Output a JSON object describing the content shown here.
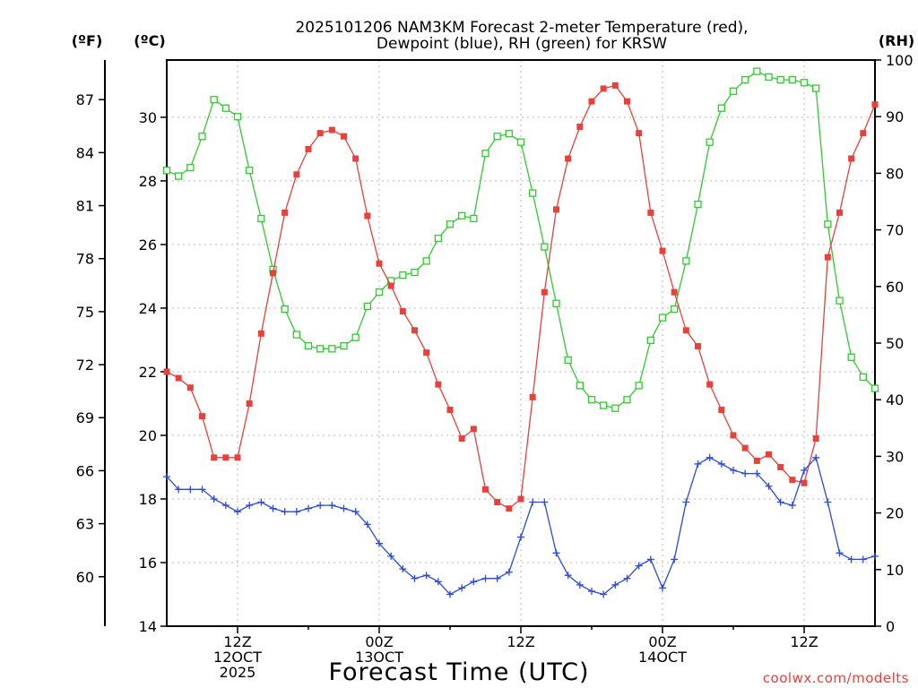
{
  "chart_data": {
    "type": "line",
    "title_line1": "2025101206 NAM3KM Forecast 2-meter Temperature (red),",
    "title_line2": "Dewpoint (blue), RH (green) for KRSW",
    "xlabel": "Forecast Time (UTC)",
    "credit": "coolwx.com/modelts",
    "units": {
      "fahrenheit": "(ºF)",
      "celsius": "(ºC)",
      "rh": "(RH)"
    },
    "x_range_hours": [
      0,
      60
    ],
    "celsius_range": [
      14,
      31.8
    ],
    "rh_range": [
      0,
      100
    ],
    "celsius_ticks": [
      "14",
      "16",
      "18",
      "20",
      "22",
      "24",
      "26",
      "28",
      "30"
    ],
    "fahrenheit_ticks": [
      "60",
      "63",
      "66",
      "69",
      "72",
      "75",
      "78",
      "81",
      "84",
      "87"
    ],
    "rh_ticks": [
      "0",
      "10",
      "20",
      "30",
      "40",
      "50",
      "60",
      "70",
      "80",
      "90",
      "100"
    ],
    "x_ticks": [
      {
        "hour": 6,
        "line1": "12Z",
        "line2": "12OCT",
        "line3": "2025"
      },
      {
        "hour": 18,
        "line1": "00Z",
        "line2": "13OCT",
        "line3": ""
      },
      {
        "hour": 30,
        "line1": "12Z",
        "line2": "",
        "line3": ""
      },
      {
        "hour": 42,
        "line1": "00Z",
        "line2": "14OCT",
        "line3": ""
      },
      {
        "hour": 54,
        "line1": "12Z",
        "line2": "",
        "line3": ""
      }
    ],
    "x": [
      0,
      1,
      2,
      3,
      4,
      5,
      6,
      7,
      8,
      9,
      10,
      11,
      12,
      13,
      14,
      15,
      16,
      17,
      18,
      19,
      20,
      21,
      22,
      23,
      24,
      25,
      26,
      27,
      28,
      29,
      30,
      31,
      32,
      33,
      34,
      35,
      36,
      37,
      38,
      39,
      40,
      41,
      42,
      43,
      44,
      45,
      46,
      47,
      48,
      49,
      50,
      51,
      52,
      53,
      54,
      55,
      56,
      57,
      58,
      59,
      60
    ],
    "series": [
      {
        "name": "Temperature (°C)",
        "color": "#e8403a",
        "marker": "filled-square",
        "values": [
          22.0,
          21.8,
          21.5,
          20.6,
          19.3,
          19.3,
          19.3,
          21.0,
          23.2,
          25.1,
          27.0,
          28.2,
          29.0,
          29.5,
          29.6,
          29.4,
          28.7,
          26.9,
          25.4,
          24.7,
          23.9,
          23.3,
          22.6,
          21.6,
          20.8,
          19.9,
          20.2,
          18.3,
          17.9,
          17.7,
          18.0,
          21.2,
          24.5,
          27.1,
          28.7,
          29.7,
          30.5,
          30.9,
          31.0,
          30.5,
          29.5,
          27.0,
          25.8,
          24.5,
          23.3,
          22.8,
          21.6,
          20.8,
          20.0,
          19.6,
          19.2,
          19.4,
          19.0,
          18.6,
          18.5,
          19.9,
          25.6,
          27.0,
          28.7,
          29.5,
          30.4
        ]
      },
      {
        "name": "Dewpoint (°C)",
        "color": "#2a4bdc",
        "marker": "plus",
        "values": [
          18.7,
          18.3,
          18.3,
          18.3,
          18.0,
          17.8,
          17.6,
          17.8,
          17.9,
          17.7,
          17.6,
          17.6,
          17.7,
          17.8,
          17.8,
          17.7,
          17.6,
          17.2,
          16.6,
          16.2,
          15.8,
          15.5,
          15.6,
          15.4,
          15.0,
          15.2,
          15.4,
          15.5,
          15.5,
          15.7,
          16.8,
          17.9,
          17.9,
          16.3,
          15.6,
          15.3,
          15.1,
          15.0,
          15.3,
          15.5,
          15.9,
          16.1,
          15.2,
          16.1,
          17.9,
          19.1,
          19.3,
          19.1,
          18.9,
          18.8,
          18.8,
          18.4,
          17.9,
          17.8,
          18.9,
          19.3,
          17.9,
          16.3,
          16.1,
          16.1,
          16.2
        ]
      },
      {
        "name": "RH (%)",
        "color": "#2ecc2e",
        "marker": "open-square",
        "values": [
          80.5,
          79.5,
          81.0,
          86.5,
          93.0,
          91.5,
          90.0,
          80.5,
          72.0,
          63.0,
          56.0,
          51.5,
          49.5,
          49.0,
          49.0,
          49.5,
          51.0,
          56.5,
          59.0,
          61.0,
          62.0,
          62.5,
          64.5,
          68.5,
          71.0,
          72.5,
          72.0,
          83.5,
          86.5,
          87.0,
          85.5,
          76.5,
          67.0,
          57.0,
          47.0,
          42.5,
          40.0,
          39.0,
          38.5,
          40.0,
          42.5,
          50.5,
          54.5,
          56.0,
          64.5,
          74.5,
          85.5,
          91.5,
          94.5,
          96.5,
          98.0,
          97.0,
          96.5,
          96.5,
          96.0,
          95.0,
          71.0,
          57.5,
          47.5,
          44.0,
          42.0
        ]
      }
    ]
  }
}
